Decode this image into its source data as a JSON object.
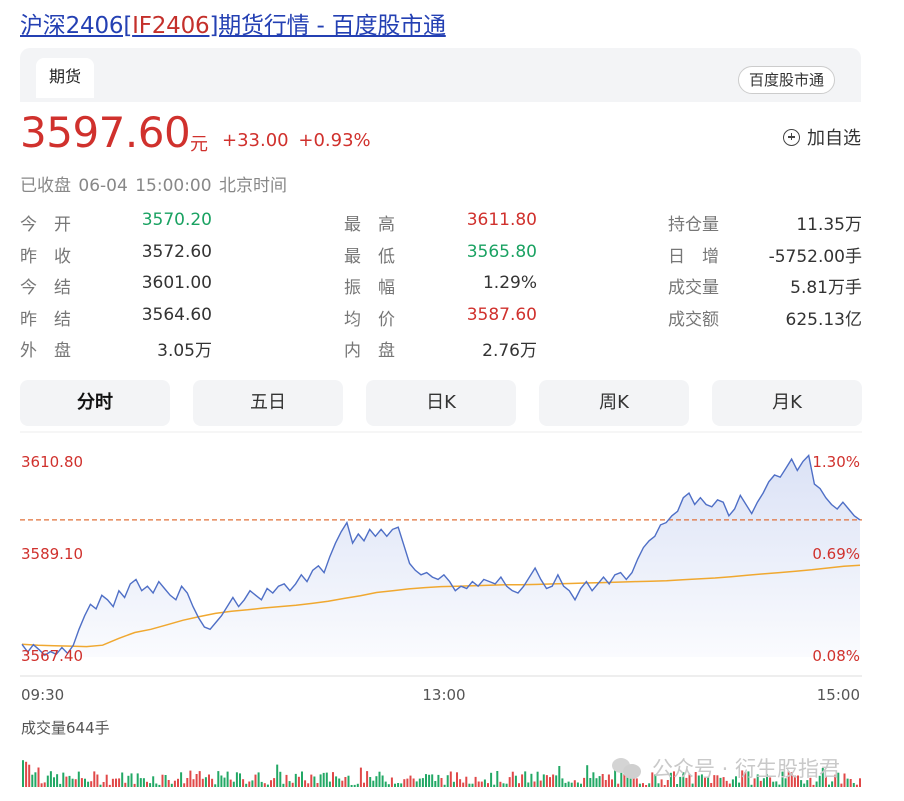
{
  "header": {
    "title_prefix": "沪深2406[",
    "title_code": "IF2406",
    "title_suffix": "]期货行情 - 百度股市通"
  },
  "tabs": {
    "futures_label": "期货",
    "source_badge": "百度股市通"
  },
  "price": {
    "last": "3597.60",
    "unit": "元",
    "change": "+33.00",
    "change_pct": "+0.93%"
  },
  "actions": {
    "add_watch": "加自选"
  },
  "status": {
    "state": "已收盘",
    "datetime": "06-04 15:00:00",
    "timezone": "北京时间"
  },
  "stats": [
    [
      {
        "label": "今　开",
        "value": "3570.20",
        "color": "green"
      },
      {
        "label": "最　高",
        "value": "3611.80",
        "color": "red"
      },
      {
        "label": "持仓量",
        "value": "11.35万",
        "color": ""
      }
    ],
    [
      {
        "label": "昨　收",
        "value": "3572.60",
        "color": ""
      },
      {
        "label": "最　低",
        "value": "3565.80",
        "color": "green"
      },
      {
        "label": "日　增",
        "value": "-5752.00手",
        "color": ""
      }
    ],
    [
      {
        "label": "今　结",
        "value": "3601.00",
        "color": ""
      },
      {
        "label": "振　幅",
        "value": "1.29%",
        "color": ""
      },
      {
        "label": "成交量",
        "value": "5.81万手",
        "color": ""
      }
    ],
    [
      {
        "label": "昨　结",
        "value": "3564.60",
        "color": ""
      },
      {
        "label": "均　价",
        "value": "3587.60",
        "color": "red"
      },
      {
        "label": "成交额",
        "value": "625.13亿",
        "color": ""
      }
    ],
    [
      {
        "label": "外　盘",
        "value": "3.05万",
        "color": ""
      },
      {
        "label": "内　盘",
        "value": "2.76万",
        "color": ""
      }
    ]
  ],
  "range_tabs": [
    "分时",
    "五日",
    "日K",
    "周K",
    "月K"
  ],
  "active_range": "分时",
  "chart_data": {
    "type": "line",
    "title": "",
    "y_ticks_left": [
      "3610.80",
      "3589.10",
      "3567.40"
    ],
    "y_ticks_right": [
      "1.30%",
      "0.69%",
      "0.08%"
    ],
    "x_ticks": [
      "09:30",
      "13:00",
      "15:00"
    ],
    "ylim": [
      3567.4,
      3610.8
    ],
    "reference_line": 3597.6,
    "series": [
      {
        "role": "price",
        "values": [
          3570.2,
          3568.5,
          3570.1,
          3569.0,
          3567.8,
          3568.6,
          3568.0,
          3569.5,
          3568.2,
          3570.0,
          3573.5,
          3576.5,
          3579.0,
          3578.0,
          3581.0,
          3580.0,
          3578.5,
          3582.0,
          3580.5,
          3583.5,
          3584.5,
          3582.0,
          3583.0,
          3581.5,
          3584.0,
          3582.5,
          3581.0,
          3580.0,
          3583.0,
          3581.5,
          3578.5,
          3576.0,
          3574.0,
          3573.5,
          3575.0,
          3576.5,
          3578.5,
          3580.5,
          3578.5,
          3580.0,
          3582.0,
          3581.0,
          3580.0,
          3582.5,
          3581.5,
          3583.0,
          3583.5,
          3582.0,
          3583.5,
          3585.5,
          3584.0,
          3586.5,
          3587.5,
          3586.0,
          3589.5,
          3592.5,
          3595.0,
          3597.0,
          3592.5,
          3594.5,
          3593.0,
          3595.5,
          3594.0,
          3595.5,
          3594.0,
          3595.5,
          3596.0,
          3592.0,
          3588.0,
          3586.5,
          3585.5,
          3586.0,
          3585.0,
          3584.5,
          3585.5,
          3584.0,
          3582.0,
          3583.0,
          3582.5,
          3584.0,
          3583.0,
          3584.5,
          3584.0,
          3583.5,
          3585.0,
          3583.0,
          3582.0,
          3581.5,
          3583.0,
          3585.0,
          3587.0,
          3584.5,
          3582.5,
          3583.0,
          3585.5,
          3583.0,
          3582.0,
          3580.0,
          3582.5,
          3584.0,
          3582.0,
          3583.5,
          3585.0,
          3583.5,
          3585.5,
          3586.0,
          3584.5,
          3586.0,
          3589.0,
          3591.5,
          3593.0,
          3594.0,
          3596.5,
          3597.0,
          3598.5,
          3599.5,
          3602.5,
          3603.5,
          3601.0,
          3602.5,
          3601.0,
          3600.5,
          3602.0,
          3601.5,
          3598.5,
          3600.0,
          3603.0,
          3601.0,
          3599.0,
          3601.5,
          3603.5,
          3606.0,
          3607.5,
          3607.0,
          3609.0,
          3611.0,
          3608.5,
          3610.5,
          3611.8,
          3605.5,
          3604.5,
          3602.5,
          3601.0,
          3600.0,
          3601.5,
          3600.0,
          3598.5,
          3597.6
        ]
      },
      {
        "role": "average",
        "values": [
          3570.2,
          3570.0,
          3569.9,
          3569.8,
          3569.7,
          3570.0,
          3571.5,
          3572.8,
          3573.5,
          3574.5,
          3575.5,
          3576.3,
          3577.0,
          3577.5,
          3577.8,
          3578.2,
          3578.5,
          3578.8,
          3579.2,
          3579.7,
          3580.3,
          3580.9,
          3581.6,
          3582.0,
          3582.4,
          3582.7,
          3582.9,
          3583.0,
          3583.1,
          3583.2,
          3583.3,
          3583.3,
          3583.4,
          3583.5,
          3583.6,
          3583.7,
          3583.8,
          3583.9,
          3584.0,
          3584.1,
          3584.2,
          3584.4,
          3584.6,
          3584.8,
          3585.1,
          3585.4,
          3585.7,
          3586.0,
          3586.3,
          3586.6,
          3587.0,
          3587.4,
          3587.6
        ]
      }
    ],
    "volume": {
      "label": "成交量644手"
    }
  },
  "watermark": {
    "text": "公众号 · 衍生股指君"
  }
}
